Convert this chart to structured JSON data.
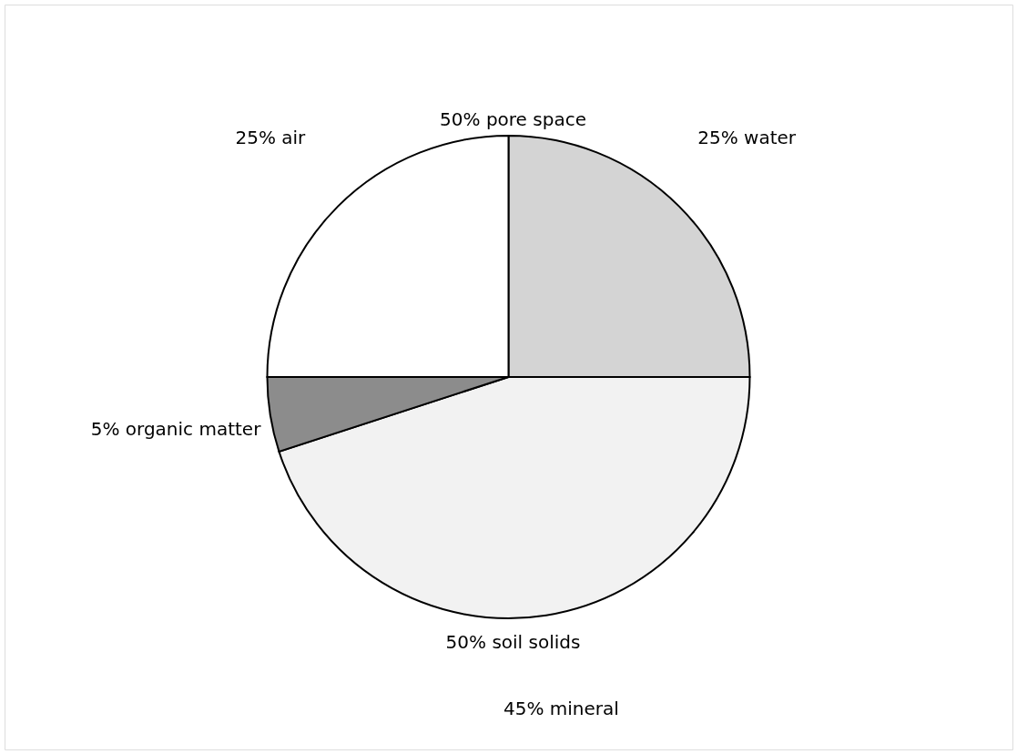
{
  "chart_data": {
    "type": "pie",
    "categories": [
      "25% water",
      "45% mineral",
      "5% organic matter",
      "25% air"
    ],
    "values": [
      25,
      45,
      5,
      25
    ],
    "colors": [
      "#d4d4d4",
      "#f2f2f2",
      "#8c8c8c",
      "#ffffff"
    ],
    "annotations": [
      "50% pore space",
      "50% soil solids"
    ],
    "legend": false
  }
}
